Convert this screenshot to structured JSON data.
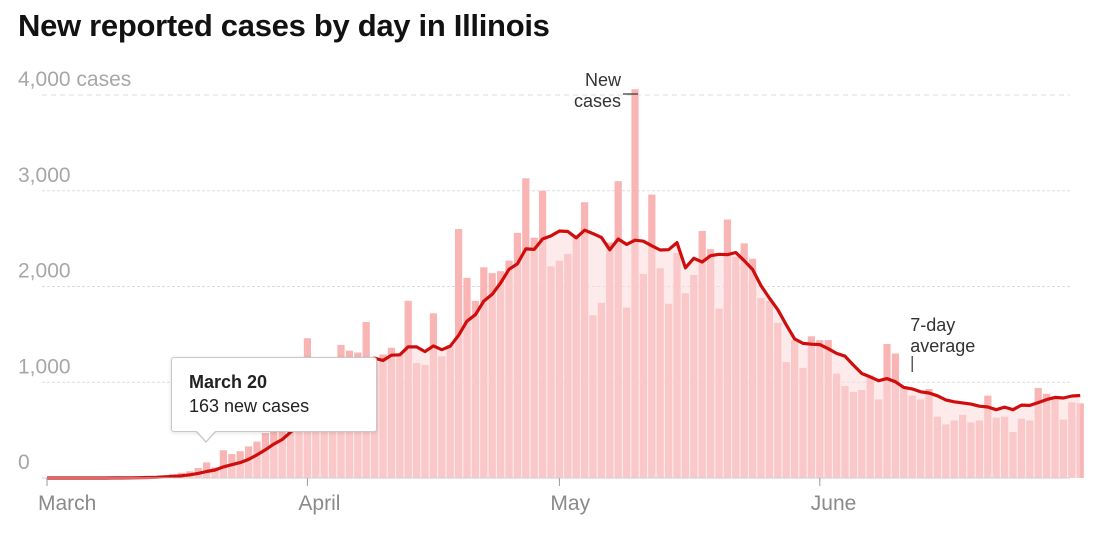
{
  "chart_data": {
    "type": "bar",
    "title": "New reported cases by day in Illinois",
    "subtitle": "",
    "xlabel": "",
    "ylabel": "",
    "ylim": [
      0,
      4000
    ],
    "y_ticks": [
      {
        "value": 0,
        "label": "0"
      },
      {
        "value": 1000,
        "label": "1,000"
      },
      {
        "value": 2000,
        "label": "2,000"
      },
      {
        "value": 3000,
        "label": "3,000"
      },
      {
        "value": 4000,
        "label": "4,000 cases"
      }
    ],
    "x_ticks": [
      {
        "day_index": 0,
        "label": "March"
      },
      {
        "day_index": 31,
        "label": "April"
      },
      {
        "day_index": 61,
        "label": "May"
      },
      {
        "day_index": 92,
        "label": "June"
      }
    ],
    "grid": true,
    "start_date": "March 1",
    "series": [
      {
        "name": "New cases",
        "style": "bar",
        "color": "#f9b4b4",
        "values": [
          0,
          0,
          0,
          0,
          0,
          0,
          0,
          1,
          2,
          4,
          6,
          7,
          12,
          18,
          25,
          42,
          55,
          70,
          105,
          163,
          110,
          290,
          250,
          280,
          330,
          380,
          470,
          530,
          640,
          810,
          780,
          1460,
          980,
          920,
          1140,
          1390,
          1330,
          1310,
          1630,
          1210,
          1290,
          1360,
          1290,
          1850,
          1200,
          1180,
          1720,
          1270,
          1390,
          2600,
          2090,
          1850,
          2200,
          2140,
          2160,
          2270,
          2560,
          3130,
          2510,
          3000,
          2210,
          2270,
          2340,
          2520,
          2880,
          1700,
          1830,
          2460,
          3100,
          1780,
          4060,
          2130,
          2960,
          2190,
          1820,
          2350,
          1930,
          2120,
          2580,
          2390,
          1770,
          2700,
          2310,
          2450,
          2290,
          1880,
          1850,
          1620,
          1210,
          1440,
          1150,
          1480,
          1440,
          1440,
          1090,
          960,
          900,
          920,
          1070,
          820,
          1400,
          1300,
          960,
          860,
          820,
          930,
          640,
          560,
          600,
          660,
          580,
          600,
          860,
          630,
          640,
          480,
          620,
          600,
          940,
          880,
          850,
          610,
          790,
          780
        ]
      },
      {
        "name": "7-day average",
        "style": "line",
        "color": "#d00d0d",
        "values": [
          0,
          0,
          0,
          0,
          0,
          0,
          0,
          0,
          1,
          1,
          2,
          3,
          5,
          7,
          11,
          16,
          23,
          33,
          48,
          68,
          84,
          116,
          139,
          161,
          194,
          241,
          295,
          354,
          402,
          478,
          557,
          653,
          726,
          812,
          918,
          1018,
          1104,
          1154,
          1238,
          1251,
          1227,
          1282,
          1287,
          1370,
          1369,
          1320,
          1380,
          1340,
          1376,
          1490,
          1639,
          1705,
          1848,
          1919,
          2037,
          2180,
          2237,
          2393,
          2387,
          2496,
          2528,
          2580,
          2574,
          2509,
          2588,
          2552,
          2513,
          2383,
          2496,
          2440,
          2484,
          2473,
          2425,
          2381,
          2384,
          2459,
          2195,
          2295,
          2256,
          2322,
          2336,
          2332,
          2355,
          2269,
          2178,
          2009,
          1879,
          1758,
          1601,
          1453,
          1406,
          1397,
          1393,
          1350,
          1301,
          1272,
          1179,
          1091,
          1056,
          1016,
          1038,
          1005,
          946,
          931,
          900,
          888,
          858,
          816,
          796,
          784,
          772,
          750,
          741,
          713,
          740,
          713,
          761,
          758,
          787,
          819,
          842,
          835,
          856,
          862
        ]
      }
    ],
    "annotations": [
      {
        "text_lines": [
          "New",
          "cases"
        ],
        "target_day_index": 70
      },
      {
        "text_lines": [
          "7-day",
          "average"
        ],
        "target_day_index": 103
      }
    ],
    "tooltip": {
      "date": "March 20",
      "value_text": "163 new cases",
      "day_index": 19
    }
  }
}
